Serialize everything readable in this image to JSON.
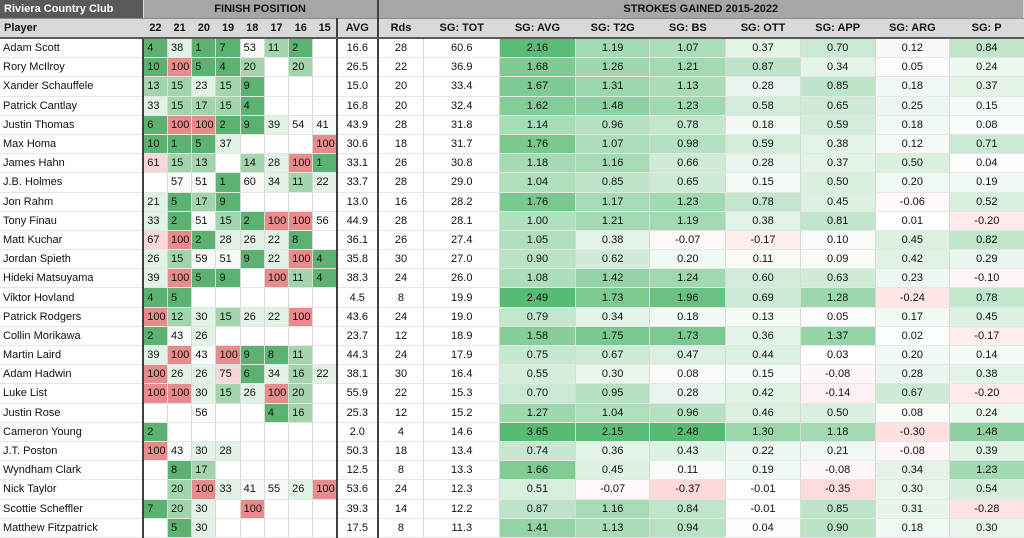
{
  "title": "Riviera Country Club",
  "finish_header": "FINISH POSITION",
  "sg_header": "STROKES GAINED  2015-2022",
  "columns": {
    "player": "Player",
    "years": [
      "22",
      "21",
      "20",
      "19",
      "18",
      "17",
      "16",
      "15"
    ],
    "avg": "AVG",
    "rds": "Rds",
    "sg": [
      "SG: TOT",
      "SG: AVG",
      "SG: T2G",
      "SG: BS",
      "SG: OTT",
      "SG: APP",
      "SG: ARG",
      "SG: P"
    ]
  },
  "colors": {
    "good": "#2e9e4f",
    "bad": "#e06666",
    "mid": "#ffffff"
  },
  "rows": [
    {
      "player": "Adam Scott",
      "fin": [
        "4",
        "38",
        "1",
        "7",
        "53",
        "11",
        "2",
        ""
      ],
      "avg": "16.6",
      "rds": "28",
      "tot": "60.6",
      "sg": [
        "2.16",
        "1.19",
        "1.07",
        "0.37",
        "0.70",
        "0.12",
        "0.84"
      ]
    },
    {
      "player": "Rory McIlroy",
      "fin": [
        "10",
        "100",
        "5",
        "4",
        "20",
        "",
        "20",
        ""
      ],
      "avg": "26.5",
      "rds": "22",
      "tot": "36.9",
      "sg": [
        "1.68",
        "1.26",
        "1.21",
        "0.87",
        "0.34",
        "0.05",
        "0.24"
      ]
    },
    {
      "player": "Xander Schauffele",
      "fin": [
        "13",
        "15",
        "23",
        "15",
        "9",
        "",
        "",
        ""
      ],
      "avg": "15.0",
      "rds": "20",
      "tot": "33.4",
      "sg": [
        "1.67",
        "1.31",
        "1.13",
        "0.28",
        "0.85",
        "0.18",
        "0.37"
      ]
    },
    {
      "player": "Patrick Cantlay",
      "fin": [
        "33",
        "15",
        "17",
        "15",
        "4",
        "",
        "",
        ""
      ],
      "avg": "16.8",
      "rds": "20",
      "tot": "32.4",
      "sg": [
        "1.62",
        "1.48",
        "1.23",
        "0.58",
        "0.65",
        "0.25",
        "0.15"
      ]
    },
    {
      "player": "Justin Thomas",
      "fin": [
        "6",
        "100",
        "100",
        "2",
        "9",
        "39",
        "54",
        "41"
      ],
      "avg": "43.9",
      "rds": "28",
      "tot": "31.8",
      "sg": [
        "1.14",
        "0.96",
        "0.78",
        "0.18",
        "0.59",
        "0.18",
        "0.08"
      ]
    },
    {
      "player": "Max Homa",
      "fin": [
        "10",
        "1",
        "5",
        "37",
        "",
        "",
        "",
        "100"
      ],
      "avg": "30.6",
      "rds": "18",
      "tot": "31.7",
      "sg": [
        "1.76",
        "1.07",
        "0.98",
        "0.59",
        "0.38",
        "0.12",
        "0.71"
      ]
    },
    {
      "player": "James Hahn",
      "fin": [
        "61",
        "15",
        "13",
        "",
        "14",
        "28",
        "100",
        "1"
      ],
      "avg": "33.1",
      "rds": "26",
      "tot": "30.8",
      "sg": [
        "1.18",
        "1.16",
        "0.66",
        "0.28",
        "0.37",
        "0.50",
        "0.04"
      ]
    },
    {
      "player": "J.B. Holmes",
      "fin": [
        "",
        "57",
        "51",
        "1",
        "60",
        "34",
        "11",
        "22"
      ],
      "avg": "33.7",
      "rds": "28",
      "tot": "29.0",
      "sg": [
        "1.04",
        "0.85",
        "0.65",
        "0.15",
        "0.50",
        "0.20",
        "0.19"
      ]
    },
    {
      "player": "Jon Rahm",
      "fin": [
        "21",
        "5",
        "17",
        "9",
        "",
        "",
        "",
        ""
      ],
      "avg": "13.0",
      "rds": "16",
      "tot": "28.2",
      "sg": [
        "1.76",
        "1.17",
        "1.23",
        "0.78",
        "0.45",
        "-0.06",
        "0.52"
      ]
    },
    {
      "player": "Tony Finau",
      "fin": [
        "33",
        "2",
        "51",
        "15",
        "2",
        "100",
        "100",
        "56"
      ],
      "avg": "44.9",
      "rds": "28",
      "tot": "28.1",
      "sg": [
        "1.00",
        "1.21",
        "1.19",
        "0.38",
        "0.81",
        "0.01",
        "-0.20"
      ]
    },
    {
      "player": "Matt Kuchar",
      "fin": [
        "67",
        "100",
        "2",
        "28",
        "26",
        "22",
        "8",
        ""
      ],
      "avg": "36.1",
      "rds": "26",
      "tot": "27.4",
      "sg": [
        "1.05",
        "0.38",
        "-0.07",
        "-0.17",
        "0.10",
        "0.45",
        "0.82"
      ]
    },
    {
      "player": "Jordan Spieth",
      "fin": [
        "26",
        "15",
        "59",
        "51",
        "9",
        "22",
        "100",
        "4"
      ],
      "avg": "35.8",
      "rds": "30",
      "tot": "27.0",
      "sg": [
        "0.90",
        "0.62",
        "0.20",
        "0.11",
        "0.09",
        "0.42",
        "0.29"
      ]
    },
    {
      "player": "Hideki Matsuyama",
      "fin": [
        "39",
        "100",
        "5",
        "9",
        "",
        "100",
        "11",
        "4"
      ],
      "avg": "38.3",
      "rds": "24",
      "tot": "26.0",
      "sg": [
        "1.08",
        "1.42",
        "1.24",
        "0.60",
        "0.63",
        "0.23",
        "-0.10"
      ]
    },
    {
      "player": "Viktor Hovland",
      "fin": [
        "4",
        "5",
        "",
        "",
        "",
        "",
        "",
        ""
      ],
      "avg": "4.5",
      "rds": "8",
      "tot": "19.9",
      "sg": [
        "2.49",
        "1.73",
        "1.96",
        "0.69",
        "1.28",
        "-0.24",
        "0.78"
      ]
    },
    {
      "player": "Patrick Rodgers",
      "fin": [
        "100",
        "12",
        "30",
        "15",
        "26",
        "22",
        "100",
        ""
      ],
      "avg": "43.6",
      "rds": "24",
      "tot": "19.0",
      "sg": [
        "0.79",
        "0.34",
        "0.18",
        "0.13",
        "0.05",
        "0.17",
        "0.45"
      ]
    },
    {
      "player": "Collin Morikawa",
      "fin": [
        "2",
        "43",
        "26",
        "",
        "",
        "",
        "",
        ""
      ],
      "avg": "23.7",
      "rds": "12",
      "tot": "18.9",
      "sg": [
        "1.58",
        "1.75",
        "1.73",
        "0.36",
        "1.37",
        "0.02",
        "-0.17"
      ]
    },
    {
      "player": "Martin Laird",
      "fin": [
        "39",
        "100",
        "43",
        "100",
        "9",
        "8",
        "11",
        ""
      ],
      "avg": "44.3",
      "rds": "24",
      "tot": "17.9",
      "sg": [
        "0.75",
        "0.67",
        "0.47",
        "0.44",
        "0.03",
        "0.20",
        "0.14"
      ]
    },
    {
      "player": "Adam Hadwin",
      "fin": [
        "100",
        "26",
        "26",
        "75",
        "6",
        "34",
        "16",
        "22"
      ],
      "avg": "38.1",
      "rds": "30",
      "tot": "16.4",
      "sg": [
        "0.55",
        "0.30",
        "0.08",
        "0.15",
        "-0.08",
        "0.28",
        "0.38"
      ]
    },
    {
      "player": "Luke List",
      "fin": [
        "100",
        "100",
        "30",
        "15",
        "26",
        "100",
        "20",
        ""
      ],
      "avg": "55.9",
      "rds": "22",
      "tot": "15.3",
      "sg": [
        "0.70",
        "0.95",
        "0.28",
        "0.42",
        "-0.14",
        "0.67",
        "-0.20"
      ]
    },
    {
      "player": "Justin Rose",
      "fin": [
        "",
        "",
        "56",
        "",
        "",
        "4",
        "16",
        ""
      ],
      "avg": "25.3",
      "rds": "12",
      "tot": "15.2",
      "sg": [
        "1.27",
        "1.04",
        "0.96",
        "0.46",
        "0.50",
        "0.08",
        "0.24"
      ]
    },
    {
      "player": "Cameron Young",
      "fin": [
        "2",
        "",
        "",
        "",
        "",
        "",
        "",
        ""
      ],
      "avg": "2.0",
      "rds": "4",
      "tot": "14.6",
      "sg": [
        "3.65",
        "2.15",
        "2.48",
        "1.30",
        "1.18",
        "-0.30",
        "1.48"
      ]
    },
    {
      "player": "J.T. Poston",
      "fin": [
        "100",
        "43",
        "30",
        "28",
        "",
        "",
        "",
        ""
      ],
      "avg": "50.3",
      "rds": "18",
      "tot": "13.4",
      "sg": [
        "0.74",
        "0.36",
        "0.43",
        "0.22",
        "0.21",
        "-0.08",
        "0.39"
      ]
    },
    {
      "player": "Wyndham Clark",
      "fin": [
        "",
        "8",
        "17",
        "",
        "",
        "",
        "",
        ""
      ],
      "avg": "12.5",
      "rds": "8",
      "tot": "13.3",
      "sg": [
        "1.66",
        "0.45",
        "0.11",
        "0.19",
        "-0.08",
        "0.34",
        "1.23"
      ]
    },
    {
      "player": "Nick Taylor",
      "fin": [
        "",
        "20",
        "100",
        "33",
        "41",
        "55",
        "26",
        "100"
      ],
      "avg": "53.6",
      "rds": "24",
      "tot": "12.3",
      "sg": [
        "0.51",
        "-0.07",
        "-0.37",
        "-0.01",
        "-0.35",
        "0.30",
        "0.54"
      ]
    },
    {
      "player": "Scottie Scheffler",
      "fin": [
        "7",
        "20",
        "30",
        "",
        "100",
        "",
        "",
        ""
      ],
      "avg": "39.3",
      "rds": "14",
      "tot": "12.2",
      "sg": [
        "0.87",
        "1.16",
        "0.84",
        "-0.01",
        "0.85",
        "0.31",
        "-0.28"
      ]
    },
    {
      "player": "Matthew Fitzpatrick",
      "fin": [
        "",
        "5",
        "30",
        "",
        "",
        "",
        "",
        ""
      ],
      "avg": "17.5",
      "rds": "8",
      "tot": "11.3",
      "sg": [
        "1.41",
        "1.13",
        "0.94",
        "0.04",
        "0.90",
        "0.18",
        "0.30"
      ]
    }
  ]
}
